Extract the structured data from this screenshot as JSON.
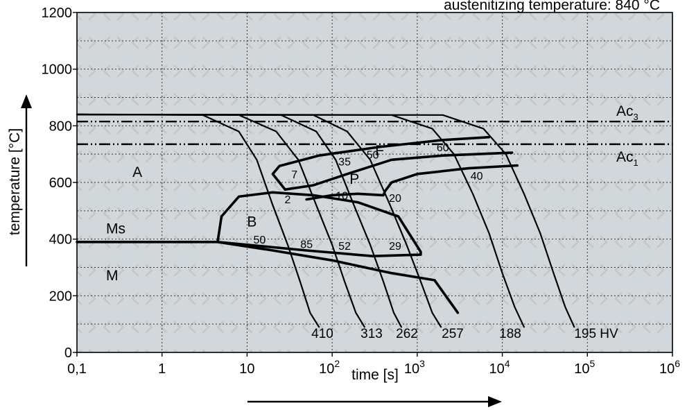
{
  "chart_data": {
    "type": "line",
    "title": "austenitizing temperature: 840 °C",
    "xlabel": "time [s]",
    "ylabel": "temperature [°C]",
    "x_scale": "log",
    "xlim": [
      0.1,
      1000000
    ],
    "ylim": [
      0,
      1200
    ],
    "x_ticks": [
      {
        "value": 0.1,
        "label": "0,1"
      },
      {
        "value": 1,
        "label": "1"
      },
      {
        "value": 10,
        "label": "10"
      },
      {
        "value": 100,
        "label": "10",
        "exp": "2"
      },
      {
        "value": 1000,
        "label": "10",
        "exp": "3"
      },
      {
        "value": 10000,
        "label": "10",
        "exp": "4"
      },
      {
        "value": 100000,
        "label": "10",
        "exp": "5"
      },
      {
        "value": 1000000,
        "label": "10",
        "exp": "6"
      }
    ],
    "y_ticks": [
      0,
      200,
      400,
      600,
      800,
      1000,
      1200
    ],
    "grid": true,
    "reference_lines": [
      {
        "name": "Ac",
        "sub": "3",
        "y": 815
      },
      {
        "name": "Ac",
        "sub": "1",
        "y": 735
      }
    ],
    "phase_labels": [
      {
        "text": "A",
        "x": 0.45,
        "y": 620
      },
      {
        "text": "Ms",
        "x": 0.22,
        "y": 420
      },
      {
        "text": "M",
        "x": 0.22,
        "y": 255
      },
      {
        "text": "F",
        "x": 320,
        "y": 695
      },
      {
        "text": "P",
        "x": 160,
        "y": 595
      },
      {
        "text": "B",
        "x": 10,
        "y": 445
      }
    ],
    "cooling_curves": [
      {
        "hardness": 410,
        "points": [
          [
            0.1,
            840
          ],
          [
            3,
            838
          ],
          [
            8,
            780
          ],
          [
            13,
            680
          ],
          [
            20,
            520
          ],
          [
            30,
            380
          ],
          [
            42,
            250
          ],
          [
            55,
            140
          ],
          [
            70,
            90
          ]
        ]
      },
      {
        "hardness": 313,
        "points": [
          [
            0.1,
            840
          ],
          [
            8,
            838
          ],
          [
            22,
            780
          ],
          [
            40,
            680
          ],
          [
            65,
            520
          ],
          [
            100,
            380
          ],
          [
            140,
            250
          ],
          [
            190,
            140
          ],
          [
            240,
            90
          ]
        ]
      },
      {
        "hardness": 262,
        "points": [
          [
            0.1,
            840
          ],
          [
            25,
            838
          ],
          [
            65,
            780
          ],
          [
            110,
            680
          ],
          [
            180,
            520
          ],
          [
            280,
            380
          ],
          [
            400,
            250
          ],
          [
            530,
            140
          ],
          [
            650,
            90
          ]
        ]
      },
      {
        "hardness": 257,
        "points": [
          [
            0.1,
            840
          ],
          [
            60,
            838
          ],
          [
            150,
            780
          ],
          [
            280,
            680
          ],
          [
            480,
            520
          ],
          [
            750,
            380
          ],
          [
            1100,
            250
          ],
          [
            1500,
            140
          ],
          [
            1900,
            90
          ]
        ]
      },
      {
        "hardness": 188,
        "points": [
          [
            0.1,
            840
          ],
          [
            500,
            838
          ],
          [
            1500,
            790
          ],
          [
            2700,
            700
          ],
          [
            4500,
            560
          ],
          [
            7000,
            420
          ],
          [
            10000,
            280
          ],
          [
            14000,
            160
          ],
          [
            18000,
            90
          ]
        ]
      },
      {
        "hardness": 195,
        "points": [
          [
            0.1,
            840
          ],
          [
            2000,
            838
          ],
          [
            6000,
            790
          ],
          [
            11000,
            700
          ],
          [
            18000,
            560
          ],
          [
            28000,
            420
          ],
          [
            40000,
            280
          ],
          [
            55000,
            160
          ],
          [
            70000,
            90
          ]
        ]
      }
    ],
    "transformation_boundaries": [
      {
        "name": "ferrite-start",
        "points": [
          [
            28,
            575
          ],
          [
            20,
            630
          ],
          [
            24,
            658
          ],
          [
            70,
            695
          ],
          [
            350,
            725
          ],
          [
            2000,
            750
          ],
          [
            7000,
            760
          ]
        ]
      },
      {
        "name": "pearlite-start",
        "points": [
          [
            28,
            575
          ],
          [
            60,
            590
          ],
          [
            150,
            630
          ],
          [
            500,
            680
          ],
          [
            2000,
            695
          ],
          [
            13000,
            705
          ]
        ]
      },
      {
        "name": "pearlite-end",
        "points": [
          [
            50,
            540
          ],
          [
            100,
            555
          ],
          [
            200,
            560
          ],
          [
            400,
            555
          ],
          [
            420,
            570
          ],
          [
            500,
            600
          ],
          [
            1000,
            630
          ],
          [
            4000,
            650
          ],
          [
            15000,
            660
          ]
        ]
      },
      {
        "name": "bainite-region",
        "points": [
          [
            4.5,
            390
          ],
          [
            5,
            480
          ],
          [
            8,
            550
          ],
          [
            20,
            565
          ],
          [
            60,
            555
          ],
          [
            200,
            530
          ],
          [
            600,
            480
          ],
          [
            1100,
            355
          ],
          [
            1100,
            345
          ],
          [
            300,
            340
          ],
          [
            50,
            360
          ],
          [
            4.5,
            390
          ]
        ]
      },
      {
        "name": "martensite-start",
        "points": [
          [
            0.1,
            390
          ],
          [
            4.5,
            390
          ],
          [
            20,
            360
          ],
          [
            100,
            325
          ],
          [
            500,
            280
          ],
          [
            1600,
            255
          ],
          [
            3000,
            140
          ]
        ]
      }
    ],
    "hardness_annotations": [
      {
        "text": "7",
        "x": 36,
        "y": 615
      },
      {
        "text": "2",
        "x": 30,
        "y": 527
      },
      {
        "text": "35",
        "x": 140,
        "y": 660
      },
      {
        "text": "50",
        "x": 300,
        "y": 685
      },
      {
        "text": "60",
        "x": 2000,
        "y": 710
      },
      {
        "text": "40",
        "x": 5000,
        "y": 610
      },
      {
        "text": "10",
        "x": 130,
        "y": 540
      },
      {
        "text": "20",
        "x": 550,
        "y": 532
      },
      {
        "text": "50",
        "x": 14,
        "y": 385
      },
      {
        "text": "85",
        "x": 50,
        "y": 368
      },
      {
        "text": "52",
        "x": 140,
        "y": 362
      },
      {
        "text": "29",
        "x": 550,
        "y": 362
      }
    ],
    "hv_labels": [
      "410",
      "313",
      "262",
      "257",
      "188",
      "195 HV"
    ]
  }
}
